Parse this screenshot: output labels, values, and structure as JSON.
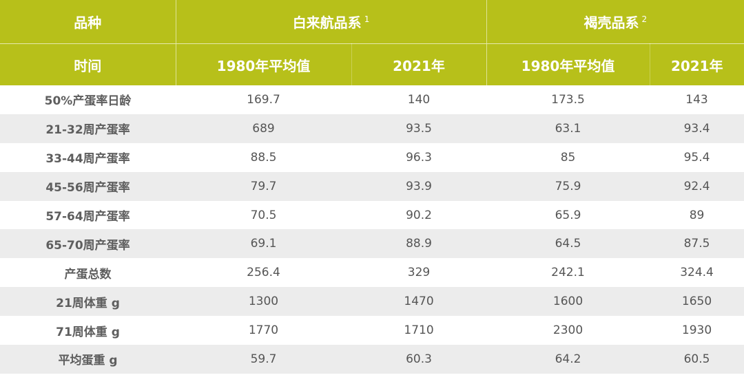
{
  "header": {
    "top_left": "品种",
    "group1": {
      "label": "白来航品系",
      "sup": "1"
    },
    "group2": {
      "label": "褐壳品系",
      "sup": "2"
    },
    "sub_left": "时间",
    "sub_cols": [
      "1980年平均值",
      "2021年",
      "1980年平均值",
      "2021年"
    ]
  },
  "rows": [
    {
      "label": "50%产蛋率日龄",
      "values": [
        "169.7",
        "140",
        "173.5",
        "143"
      ]
    },
    {
      "label": "21-32周产蛋率",
      "values": [
        "689",
        "93.5",
        "63.1",
        "93.4"
      ]
    },
    {
      "label": "33-44周产蛋率",
      "values": [
        "88.5",
        "96.3",
        "85",
        "95.4"
      ]
    },
    {
      "label": "45-56周产蛋率",
      "values": [
        "79.7",
        "93.9",
        "75.9",
        "92.4"
      ]
    },
    {
      "label": "57-64周产蛋率",
      "values": [
        "70.5",
        "90.2",
        "65.9",
        "89"
      ]
    },
    {
      "label": "65-70周产蛋率",
      "values": [
        "69.1",
        "88.9",
        "64.5",
        "87.5"
      ]
    },
    {
      "label": "产蛋总数",
      "values": [
        "256.4",
        "329",
        "242.1",
        "324.4"
      ]
    },
    {
      "label": "21周体重 g",
      "values": [
        "1300",
        "1470",
        "1600",
        "1650"
      ]
    },
    {
      "label": "71周体重 g",
      "values": [
        "1770",
        "1710",
        "2300",
        "1930"
      ]
    },
    {
      "label": "平均蛋重 g",
      "values": [
        "59.7",
        "60.3",
        "64.2",
        "60.5"
      ]
    }
  ],
  "colors": {
    "header_bg": "#b7c01a",
    "header_text": "#ffffff",
    "stripe": "#ececec",
    "text": "#555555"
  }
}
